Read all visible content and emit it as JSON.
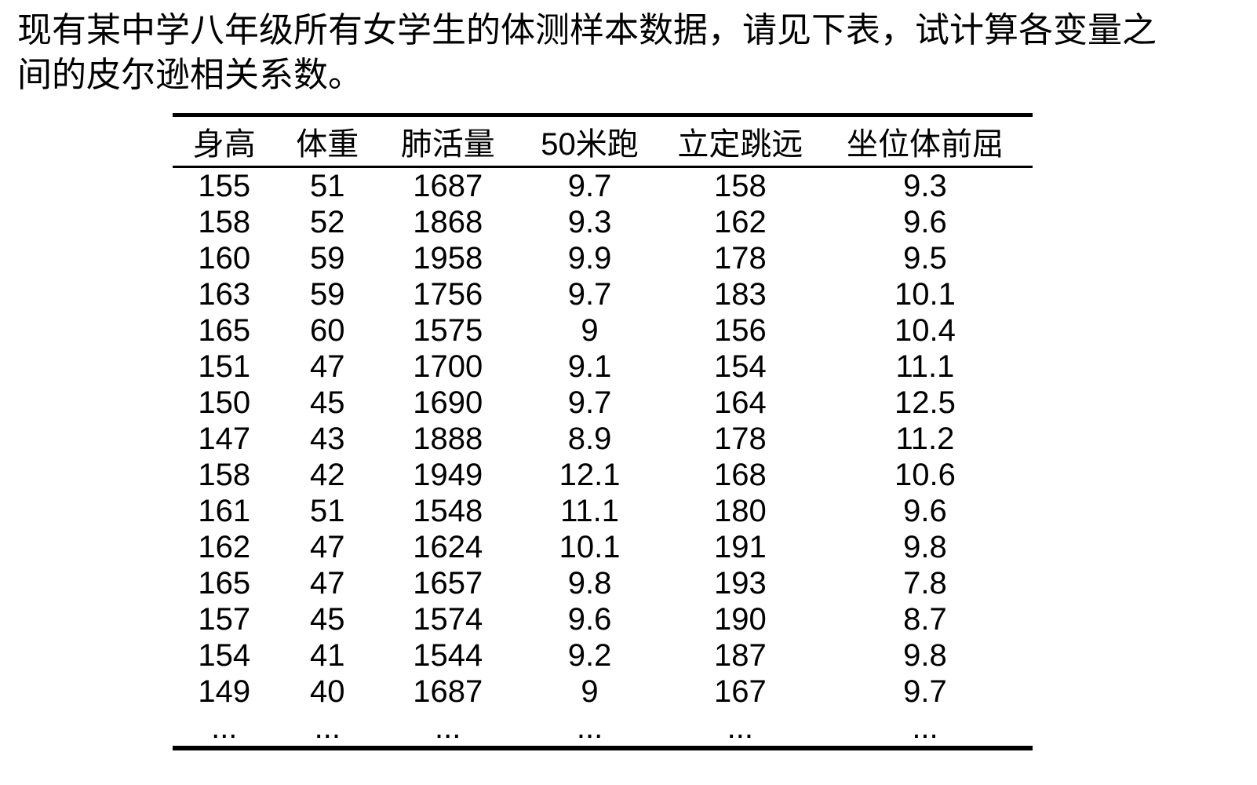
{
  "title": {
    "line1": "现有某中学八年级所有女学生的体测样本数据，请见下表，试计算各变量之",
    "line2": "间的皮尔逊相关系数。"
  },
  "table": {
    "headers": [
      "身高",
      "体重",
      "肺活量",
      "50米跑",
      "立定跳远",
      "坐位体前屈"
    ],
    "rows": [
      [
        "155",
        "51",
        "1687",
        "9.7",
        "158",
        "9.3"
      ],
      [
        "158",
        "52",
        "1868",
        "9.3",
        "162",
        "9.6"
      ],
      [
        "160",
        "59",
        "1958",
        "9.9",
        "178",
        "9.5"
      ],
      [
        "163",
        "59",
        "1756",
        "9.7",
        "183",
        "10.1"
      ],
      [
        "165",
        "60",
        "1575",
        "9",
        "156",
        "10.4"
      ],
      [
        "151",
        "47",
        "1700",
        "9.1",
        "154",
        "11.1"
      ],
      [
        "150",
        "45",
        "1690",
        "9.7",
        "164",
        "12.5"
      ],
      [
        "147",
        "43",
        "1888",
        "8.9",
        "178",
        "11.2"
      ],
      [
        "158",
        "42",
        "1949",
        "12.1",
        "168",
        "10.6"
      ],
      [
        "161",
        "51",
        "1548",
        "11.1",
        "180",
        "9.6"
      ],
      [
        "162",
        "47",
        "1624",
        "10.1",
        "191",
        "9.8"
      ],
      [
        "165",
        "47",
        "1657",
        "9.8",
        "193",
        "7.8"
      ],
      [
        "157",
        "45",
        "1574",
        "9.6",
        "190",
        "8.7"
      ],
      [
        "154",
        "41",
        "1544",
        "9.2",
        "187",
        "9.8"
      ],
      [
        "149",
        "40",
        "1687",
        "9",
        "167",
        "9.7"
      ],
      [
        "...",
        "...",
        "...",
        "...",
        "...",
        "..."
      ]
    ]
  },
  "colors": {
    "text": "#000000",
    "background": "#ffffff",
    "border": "#000000"
  }
}
